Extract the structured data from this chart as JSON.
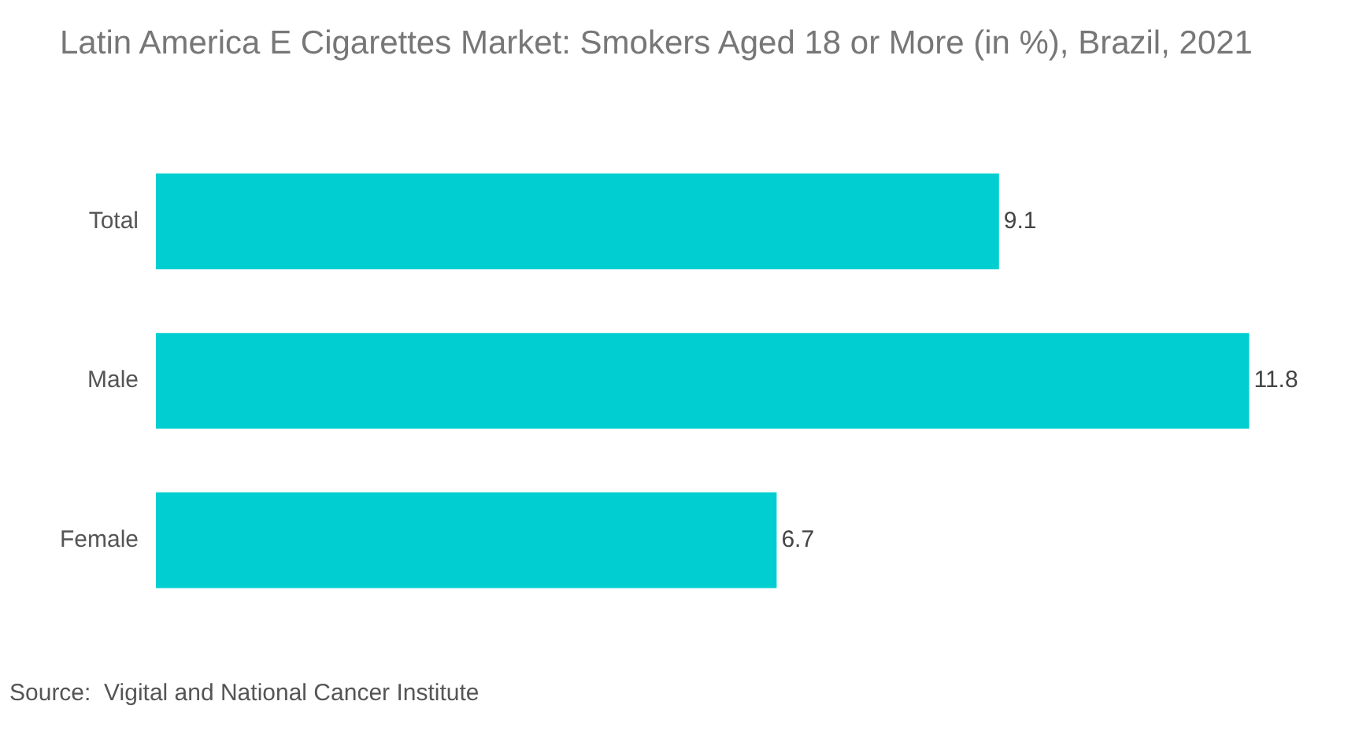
{
  "chart_data": {
    "type": "bar",
    "orientation": "horizontal",
    "title": "Latin America E Cigarettes Market: Smokers Aged 18 or More (in %), Brazil, 2021",
    "categories": [
      "Total",
      "Male",
      "Female"
    ],
    "values": [
      9.1,
      11.8,
      6.7
    ],
    "color": "#00ced1",
    "data_labels": true,
    "legend": false,
    "annotations": [
      "Source:  Vigital and National Cancer Institute"
    ]
  }
}
